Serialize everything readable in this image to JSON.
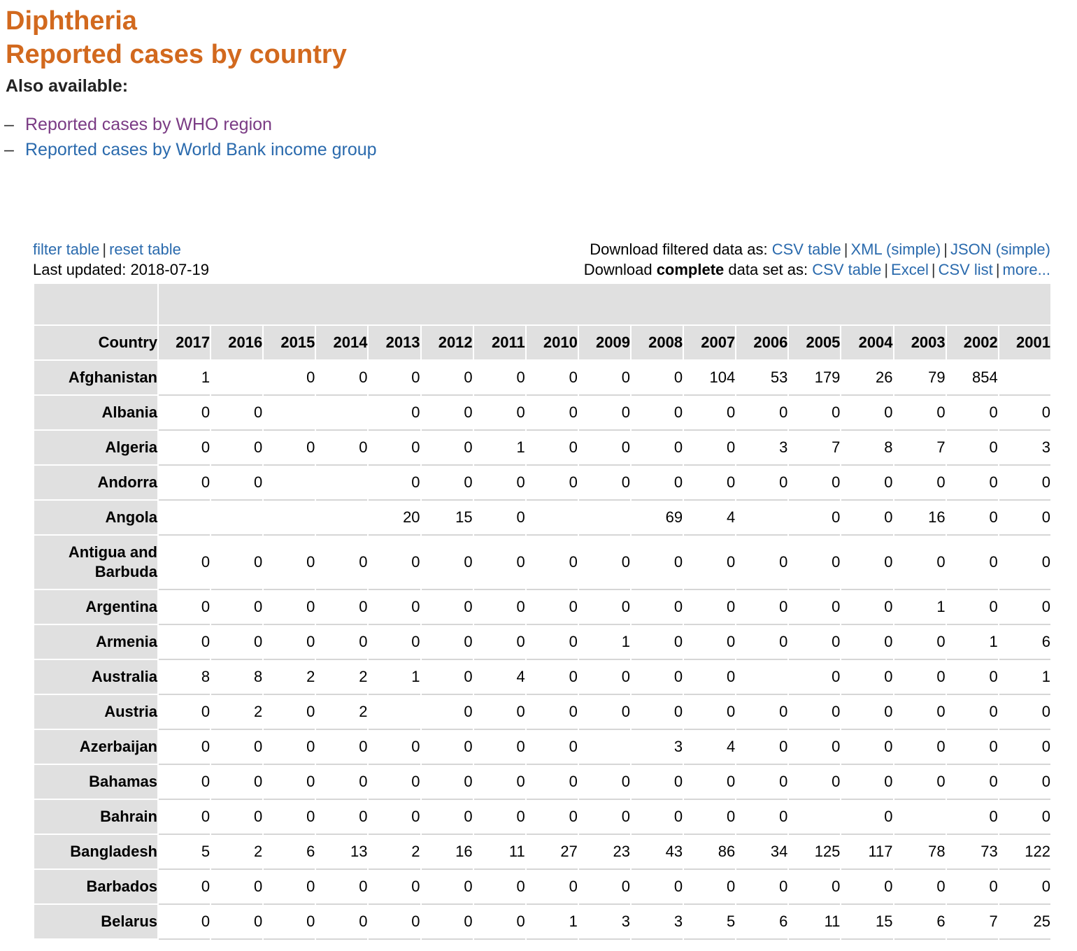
{
  "page": {
    "title_line1": "Diphtheria",
    "title_line2": "Reported cases by country",
    "also_available": "Also available:",
    "related_links": [
      {
        "label": "Reported cases by WHO region"
      },
      {
        "label": "Reported cases by World Bank income group"
      }
    ]
  },
  "toolbar": {
    "filter_table": "filter table",
    "separator": "|",
    "reset_table": "reset table",
    "last_updated": "Last updated: 2018-07-19",
    "download_filtered_label": "Download filtered data as:",
    "download_filtered": [
      "CSV table",
      "XML (simple)",
      "JSON (simple)"
    ],
    "download_complete_prefix": "Download ",
    "download_complete_bold": "complete",
    "download_complete_suffix": " data set as:",
    "download_complete": [
      "CSV table",
      "Excel",
      "CSV list",
      "more..."
    ]
  },
  "table": {
    "country_header": "Country",
    "years": [
      "2017",
      "2016",
      "2015",
      "2014",
      "2013",
      "2012",
      "2011",
      "2010",
      "2009",
      "2008",
      "2007",
      "2006",
      "2005",
      "2004",
      "2003",
      "2002",
      "2001"
    ],
    "rows": [
      {
        "country": "Afghanistan",
        "values": [
          "1",
          "",
          "0",
          "0",
          "0",
          "0",
          "0",
          "0",
          "0",
          "0",
          "104",
          "53",
          "179",
          "26",
          "79",
          "854",
          ""
        ]
      },
      {
        "country": "Albania",
        "values": [
          "0",
          "0",
          "",
          "",
          "0",
          "0",
          "0",
          "0",
          "0",
          "0",
          "0",
          "0",
          "0",
          "0",
          "0",
          "0",
          "0"
        ]
      },
      {
        "country": "Algeria",
        "values": [
          "0",
          "0",
          "0",
          "0",
          "0",
          "0",
          "1",
          "0",
          "0",
          "0",
          "0",
          "3",
          "7",
          "8",
          "7",
          "0",
          "3"
        ]
      },
      {
        "country": "Andorra",
        "values": [
          "0",
          "0",
          "",
          "",
          "0",
          "0",
          "0",
          "0",
          "0",
          "0",
          "0",
          "0",
          "0",
          "0",
          "0",
          "0",
          "0"
        ]
      },
      {
        "country": "Angola",
        "values": [
          "",
          "",
          "",
          "",
          "20",
          "15",
          "0",
          "",
          "",
          "69",
          "4",
          "",
          "0",
          "0",
          "16",
          "0",
          "0"
        ]
      },
      {
        "country": "Antigua and Barbuda",
        "values": [
          "0",
          "0",
          "0",
          "0",
          "0",
          "0",
          "0",
          "0",
          "0",
          "0",
          "0",
          "0",
          "0",
          "0",
          "0",
          "0",
          "0"
        ]
      },
      {
        "country": "Argentina",
        "values": [
          "0",
          "0",
          "0",
          "0",
          "0",
          "0",
          "0",
          "0",
          "0",
          "0",
          "0",
          "0",
          "0",
          "0",
          "1",
          "0",
          "0"
        ]
      },
      {
        "country": "Armenia",
        "values": [
          "0",
          "0",
          "0",
          "0",
          "0",
          "0",
          "0",
          "0",
          "1",
          "0",
          "0",
          "0",
          "0",
          "0",
          "0",
          "1",
          "6"
        ]
      },
      {
        "country": "Australia",
        "values": [
          "8",
          "8",
          "2",
          "2",
          "1",
          "0",
          "4",
          "0",
          "0",
          "0",
          "0",
          "",
          "0",
          "0",
          "0",
          "0",
          "1"
        ]
      },
      {
        "country": "Austria",
        "values": [
          "0",
          "2",
          "0",
          "2",
          "",
          "0",
          "0",
          "0",
          "0",
          "0",
          "0",
          "0",
          "0",
          "0",
          "0",
          "0",
          "0"
        ]
      },
      {
        "country": "Azerbaijan",
        "values": [
          "0",
          "0",
          "0",
          "0",
          "0",
          "0",
          "0",
          "0",
          "",
          "3",
          "4",
          "0",
          "0",
          "0",
          "0",
          "0",
          "0"
        ]
      },
      {
        "country": "Bahamas",
        "values": [
          "0",
          "0",
          "0",
          "0",
          "0",
          "0",
          "0",
          "0",
          "0",
          "0",
          "0",
          "0",
          "0",
          "0",
          "0",
          "0",
          "0"
        ]
      },
      {
        "country": "Bahrain",
        "values": [
          "0",
          "0",
          "0",
          "0",
          "0",
          "0",
          "0",
          "0",
          "0",
          "0",
          "0",
          "0",
          "",
          "0",
          "",
          "0",
          "0"
        ]
      },
      {
        "country": "Bangladesh",
        "values": [
          "5",
          "2",
          "6",
          "13",
          "2",
          "16",
          "11",
          "27",
          "23",
          "43",
          "86",
          "34",
          "125",
          "117",
          "78",
          "73",
          "122"
        ]
      },
      {
        "country": "Barbados",
        "values": [
          "0",
          "0",
          "0",
          "0",
          "0",
          "0",
          "0",
          "0",
          "0",
          "0",
          "0",
          "0",
          "0",
          "0",
          "0",
          "0",
          "0"
        ]
      },
      {
        "country": "Belarus",
        "values": [
          "0",
          "0",
          "0",
          "0",
          "0",
          "0",
          "0",
          "1",
          "3",
          "3",
          "5",
          "6",
          "11",
          "15",
          "6",
          "7",
          "25"
        ]
      }
    ]
  }
}
